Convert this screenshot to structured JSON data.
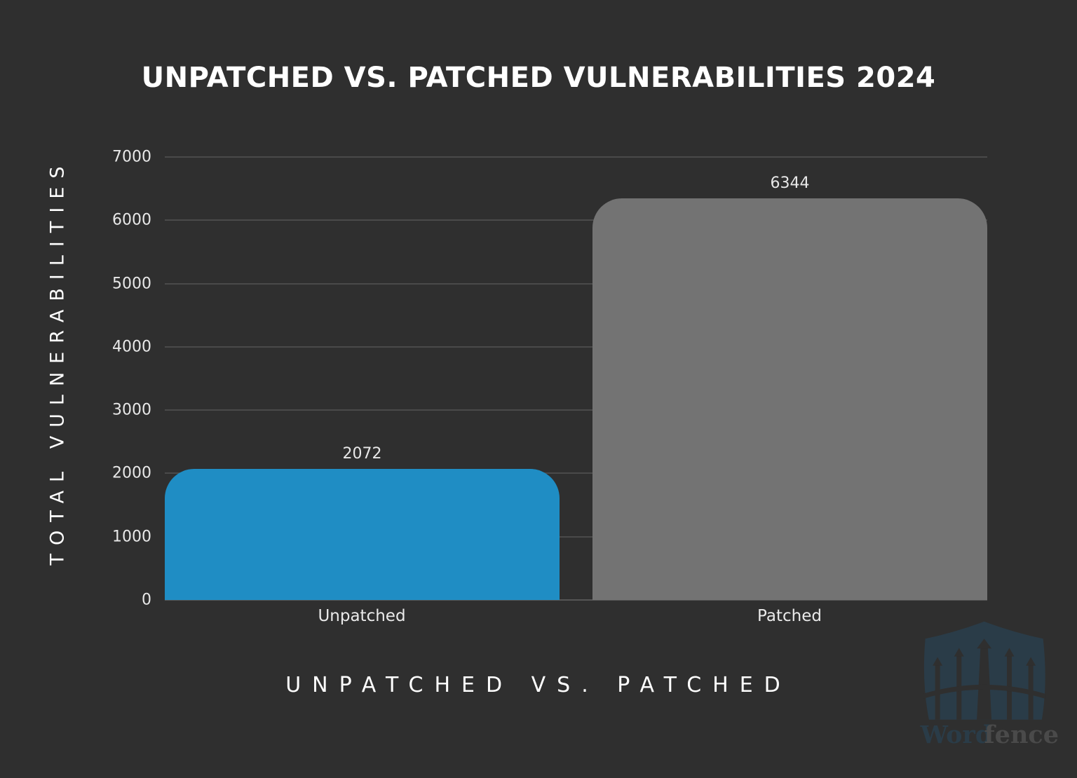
{
  "chart_data": {
    "type": "bar",
    "title": "UNPATCHED VS. PATCHED VULNERABILITIES 2024",
    "xlabel": "UNPATCHED VS. PATCHED",
    "ylabel": "TOTAL VULNERABILITIES",
    "categories": [
      "Unpatched",
      "Patched"
    ],
    "values": [
      2072,
      6344
    ],
    "colors": [
      "#1f8dc4",
      "#737373"
    ],
    "ylim": [
      0,
      7000
    ],
    "yticks": [
      "0",
      "1000",
      "2000",
      "3000",
      "4000",
      "5000",
      "6000",
      "7000"
    ],
    "grid": true,
    "legend": null,
    "data_labels": [
      "2072",
      "6344"
    ]
  },
  "watermark": {
    "brand_part1": "Word",
    "brand_part2": "fence"
  }
}
